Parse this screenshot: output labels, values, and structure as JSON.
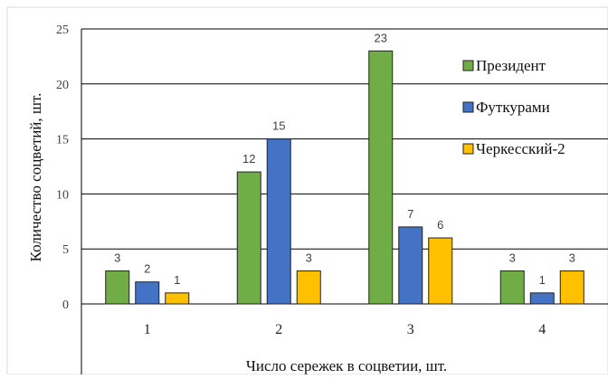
{
  "chart_data": {
    "type": "bar",
    "categories": [
      "1",
      "2",
      "3",
      "4"
    ],
    "series": [
      {
        "name": "Президент",
        "values": [
          3,
          12,
          23,
          3
        ],
        "color": "#70AD47"
      },
      {
        "name": "Футкурами",
        "values": [
          2,
          15,
          7,
          1
        ],
        "color": "#4472C4"
      },
      {
        "name": "Черкесский-2",
        "values": [
          1,
          3,
          6,
          3
        ],
        "color": "#FFC000"
      }
    ],
    "title": "",
    "xlabel": "Число сережек в соцветии, шт.",
    "ylabel": "Количество соцветий, шт.",
    "ylim": [
      0,
      25
    ],
    "yticks": [
      "0",
      "5",
      "10",
      "15",
      "20",
      "25"
    ],
    "grid": true,
    "legend_position": "top-right",
    "data_labels": true
  }
}
